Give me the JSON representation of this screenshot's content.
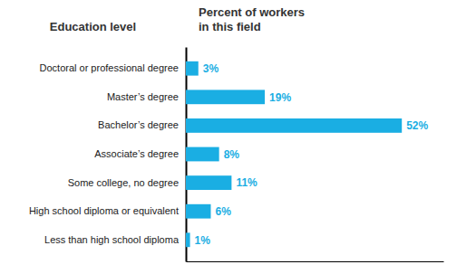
{
  "chart_data": {
    "type": "bar",
    "orientation": "horizontal",
    "ylabel": "Education level",
    "xlabel": "Percent of workers\nin this field",
    "categories": [
      "Doctoral or professional degree",
      "Master’s degree",
      "Bachelor’s degree",
      "Associate’s degree",
      "Some college, no degree",
      "High school diploma or equivalent",
      "Less than high school diploma"
    ],
    "values": [
      3,
      19,
      52,
      8,
      11,
      6,
      1
    ],
    "value_labels": [
      "3%",
      "19%",
      "52%",
      "8%",
      "11%",
      "6%",
      "1%"
    ],
    "data_labels": true,
    "color": "#1aaee3",
    "xlim": [
      0,
      62
    ],
    "xticks": [],
    "tick_labels": "y",
    "grid": false
  }
}
